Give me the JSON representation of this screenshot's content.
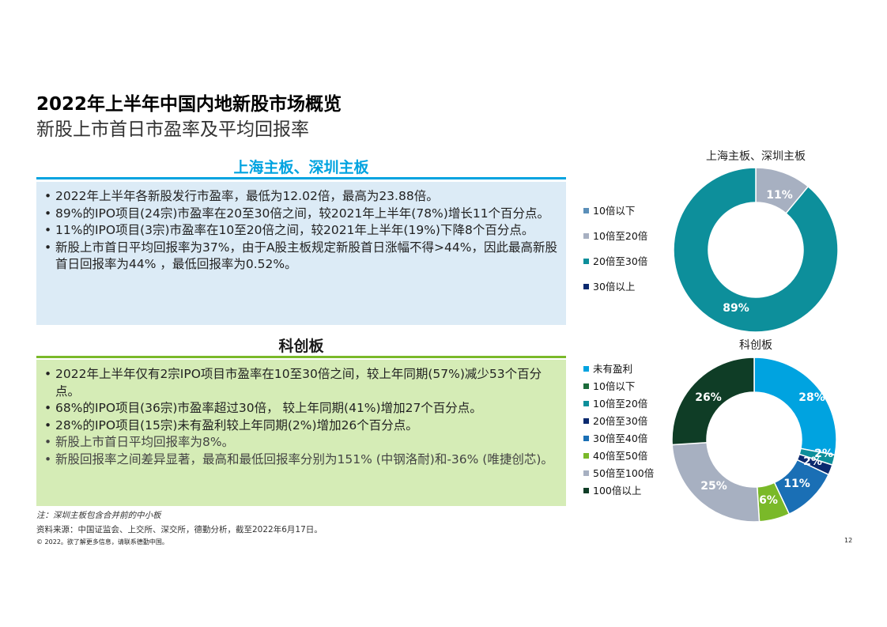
{
  "header": {
    "title": "2022年上半年中国内地新股市场概览",
    "subtitle": "新股上市首日市盈率及平均回报率"
  },
  "section1": {
    "title": "上海主板、深圳主板",
    "bullets": [
      "2022年上半年各新股发行市盈率，最低为12.02倍，最高为23.88倍。",
      "89%的IPO项目(24宗)市盈率在20至30倍之间，较2021年上半年(78%)增长11个百分点。",
      "11%的IPO项目(3宗)市盈率在10至20倍之间，较2021年上半年(19%)下降8个百分点。",
      "新股上市首日平均回报率为37%，由于A股主板规定新股首日涨幅不得>44%，因此最高新股首日回报率为44% ，最低回报率为0.52%。"
    ]
  },
  "section2": {
    "title": "科创板",
    "bullets": [
      "2022年上半年仅有2宗IPO项目市盈率在10至30倍之间，较上年同期(57%)减少53个百分点。",
      "68%的IPO项目(36宗)市盈率超过30倍， 较上年同期(41%)增加27个百分点。",
      "28%的IPO项目(15宗)未有盈利较上年同期(2%)增加26个百分点。",
      "新股上市首日平均回报率为8%。",
      "新股回报率之间差异显著，最高和最低回报率分别为151% (中钢洛耐)和-36% (唯捷创芯)。"
    ]
  },
  "chart_data": [
    {
      "type": "pie",
      "title": "上海主板、深圳主板",
      "categories": [
        "10倍以下",
        "10倍至20倍",
        "20倍至30倍",
        "30倍以上"
      ],
      "values": [
        0,
        11,
        89,
        0
      ],
      "labels": [
        "",
        "11%",
        "89%",
        ""
      ],
      "colors": [
        "#5b8fb9",
        "#a7b0c1",
        "#0d8f9b",
        "#0b2a6f"
      ],
      "legend_position": "left",
      "donut": true
    },
    {
      "type": "pie",
      "title": "科创板",
      "categories": [
        "未有盈利",
        "10倍以下",
        "10倍至20倍",
        "20倍至30倍",
        "30倍至40倍",
        "40倍至50倍",
        "50倍至100倍",
        "100倍以上"
      ],
      "values": [
        28,
        0,
        2,
        2,
        11,
        6,
        25,
        26
      ],
      "labels": [
        "28%",
        "",
        "2%",
        "2%",
        "11%",
        "6%",
        "25%",
        "26%"
      ],
      "colors": [
        "#00a3e0",
        "#1d6b3a",
        "#0d8f9b",
        "#0b2a6f",
        "#1a6fb5",
        "#7ab929",
        "#a7b0c1",
        "#0f3d26"
      ],
      "legend_position": "left",
      "donut": true
    }
  ],
  "notes": {
    "note": "注：深圳主板包含合并前的中小板",
    "source": "资料来源：中国证监会、上交所、深交所，德勤分析，截至2022年6月17日。",
    "copyright": "© 2022。欲了解更多信息，请联系德勤中国。",
    "page_number": "12"
  }
}
